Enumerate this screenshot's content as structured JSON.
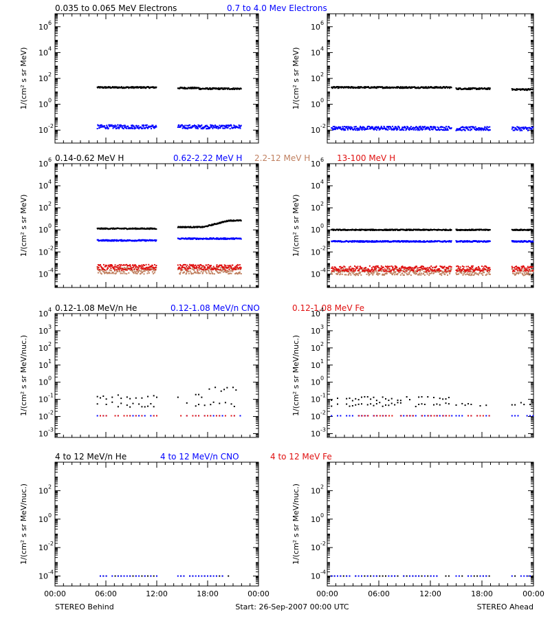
{
  "chart_data": [
    {
      "type": "scatter",
      "panel": "behind-electrons",
      "ylabel": "1/(cm² s sr MeV)",
      "yscale": "log",
      "ylim": [
        0.001,
        10000000
      ],
      "yticks": [
        {
          "exp": -2,
          "label": "10"
        },
        {
          "exp": 0,
          "label": "10"
        },
        {
          "exp": 2,
          "label": "10"
        },
        {
          "exp": 4,
          "label": "10"
        },
        {
          "exp": 6,
          "label": "10"
        }
      ],
      "xlim_hours": [
        0,
        24
      ],
      "series": [
        {
          "name": "0.035 to 0.065 MeV Electrons",
          "color": "#000000",
          "segments": [
            [
              5,
              12,
              20
            ],
            [
              14.5,
              17,
              18
            ],
            [
              17,
              22,
              16
            ]
          ],
          "scatter": 0.06
        },
        {
          "name": "0.7 to 4.0 Mev Electrons",
          "color": "#0000ff",
          "segments": [
            [
              5,
              12,
              0.018
            ],
            [
              14.5,
              22,
              0.018
            ]
          ],
          "scatter": 0.15
        }
      ]
    },
    {
      "type": "scatter",
      "panel": "ahead-electrons",
      "ylabel": "1/(cm² s sr MeV)",
      "yscale": "log",
      "ylim": [
        0.001,
        10000000
      ],
      "yticks": [
        {
          "exp": -2,
          "label": "10"
        },
        {
          "exp": 0,
          "label": "10"
        },
        {
          "exp": 2,
          "label": "10"
        },
        {
          "exp": 4,
          "label": "10"
        },
        {
          "exp": 6,
          "label": "10"
        }
      ],
      "xlim_hours": [
        0,
        24
      ],
      "series": [
        {
          "name": "",
          "color": "#000000",
          "segments": [
            [
              0.5,
              14.5,
              20
            ],
            [
              15,
              19,
              16
            ],
            [
              21.5,
              24,
              14
            ]
          ],
          "scatter": 0.06
        },
        {
          "name": "",
          "color": "#0000ff",
          "segments": [
            [
              0.5,
              14.5,
              0.014
            ],
            [
              15,
              19,
              0.013
            ],
            [
              21.5,
              24,
              0.013
            ]
          ],
          "scatter": 0.15
        }
      ]
    },
    {
      "type": "scatter",
      "panel": "behind-protons",
      "ylabel": "1/(cm² s sr MeV)",
      "yscale": "log",
      "ylim": [
        6e-06,
        1000000
      ],
      "yticks": [
        {
          "exp": -4,
          "label": "10"
        },
        {
          "exp": -2,
          "label": "10"
        },
        {
          "exp": 0,
          "label": "10"
        },
        {
          "exp": 2,
          "label": "10"
        },
        {
          "exp": 4,
          "label": "10"
        },
        {
          "exp": 6,
          "label": "10"
        }
      ],
      "xlim_hours": [
        0,
        24
      ],
      "series": [
        {
          "name": "0.14-0.62 MeV H",
          "color": "#000000",
          "segments": [
            [
              5,
              12,
              1.3
            ],
            [
              14.5,
              17.5,
              1.8
            ],
            [
              17.5,
              22,
              7
            ]
          ],
          "scatter": 0.05
        },
        {
          "name": "0.62-2.22 MeV H",
          "color": "#0000ff",
          "segments": [
            [
              5,
              12,
              0.11
            ],
            [
              14.5,
              22,
              0.16
            ]
          ],
          "scatter": 0.06
        },
        {
          "name": "2.2-12 MeV H",
          "color": "#c08060",
          "segments": [
            [
              5,
              12,
              0.0002
            ],
            [
              14.5,
              22,
              0.0002
            ]
          ],
          "scatter": 0.3
        },
        {
          "name": "13-100 MeV H",
          "color": "#e01010",
          "segments": [
            [
              5,
              12,
              0.0004
            ],
            [
              14.5,
              22,
              0.0004
            ]
          ],
          "scatter": 0.25
        }
      ]
    },
    {
      "type": "scatter",
      "panel": "ahead-protons",
      "ylabel": "1/(cm² s sr MeV)",
      "yscale": "log",
      "ylim": [
        6e-06,
        1000000
      ],
      "yticks": [
        {
          "exp": -4,
          "label": "10"
        },
        {
          "exp": -2,
          "label": "10"
        },
        {
          "exp": 0,
          "label": "10"
        },
        {
          "exp": 2,
          "label": "10"
        },
        {
          "exp": 4,
          "label": "10"
        },
        {
          "exp": 6,
          "label": "10"
        }
      ],
      "xlim_hours": [
        0,
        24
      ],
      "series": [
        {
          "name": "",
          "color": "#000000",
          "segments": [
            [
              0.5,
              14.5,
              1.0
            ],
            [
              15,
              19,
              1.0
            ],
            [
              21.5,
              24,
              1.0
            ]
          ],
          "scatter": 0.05
        },
        {
          "name": "",
          "color": "#0000ff",
          "segments": [
            [
              0.5,
              14.5,
              0.09
            ],
            [
              15,
              19,
              0.09
            ],
            [
              21.5,
              24,
              0.09
            ]
          ],
          "scatter": 0.06
        },
        {
          "name": "",
          "color": "#c08060",
          "segments": [
            [
              0.5,
              14.5,
              0.00015
            ],
            [
              15,
              19,
              0.00015
            ],
            [
              21.5,
              24,
              0.00015
            ]
          ],
          "scatter": 0.3
        },
        {
          "name": "",
          "color": "#e01010",
          "segments": [
            [
              0.5,
              14.5,
              0.0003
            ],
            [
              15,
              19,
              0.0003
            ],
            [
              21.5,
              24,
              0.0003
            ]
          ],
          "scatter": 0.25
        }
      ]
    },
    {
      "type": "scatter",
      "panel": "behind-heavy-low",
      "ylabel": "1/(cm² s sr MeV/nuc.)",
      "yscale": "log",
      "ylim": [
        0.0006,
        10000
      ],
      "yticks": [
        {
          "exp": -3,
          "label": "10"
        },
        {
          "exp": -2,
          "label": "10"
        },
        {
          "exp": -1,
          "label": "10"
        },
        {
          "exp": 0,
          "label": "10"
        },
        {
          "exp": 1,
          "label": "10"
        },
        {
          "exp": 2,
          "label": "10"
        },
        {
          "exp": 3,
          "label": "10"
        },
        {
          "exp": 4,
          "label": "10"
        }
      ],
      "xlim_hours": [
        0,
        24
      ],
      "series": [
        {
          "name": "0.12-1.08 MeV/n He",
          "color": "#000000",
          "segments": [
            [
              5,
              12,
              0.05
            ],
            [
              5,
              12,
              0.13
            ],
            [
              14.5,
              22,
              0.05
            ],
            [
              14.5,
              17.5,
              0.15
            ],
            [
              17.5,
              22,
              0.4
            ]
          ],
          "scatter": 0.15,
          "sparse": true
        },
        {
          "name": "0.12-1.08 MeV/n CNO",
          "color": "#0000ff",
          "segments": [
            [
              5,
              12,
              0.011
            ],
            [
              14.5,
              22,
              0.011
            ]
          ],
          "scatter": 0.0,
          "sparse": true
        },
        {
          "name": "0.12-1.08 MeV Fe",
          "color": "#e01010",
          "segments": [
            [
              5,
              12,
              0.011
            ],
            [
              14.5,
              22,
              0.011
            ]
          ],
          "scatter": 0.0,
          "sparse": true
        }
      ]
    },
    {
      "type": "scatter",
      "panel": "ahead-heavy-low",
      "ylabel": "1/(cm² s sr MeV/nuc.)",
      "yscale": "log",
      "ylim": [
        0.0006,
        10000
      ],
      "yticks": [
        {
          "exp": -3,
          "label": "10"
        },
        {
          "exp": -2,
          "label": "10"
        },
        {
          "exp": -1,
          "label": "10"
        },
        {
          "exp": 0,
          "label": "10"
        },
        {
          "exp": 1,
          "label": "10"
        },
        {
          "exp": 2,
          "label": "10"
        },
        {
          "exp": 3,
          "label": "10"
        },
        {
          "exp": 4,
          "label": "10"
        }
      ],
      "xlim_hours": [
        0,
        24
      ],
      "series": [
        {
          "name": "",
          "color": "#000000",
          "segments": [
            [
              0.5,
              14.5,
              0.05
            ],
            [
              0.5,
              14.5,
              0.11
            ],
            [
              15,
              19,
              0.05
            ],
            [
              21.5,
              24,
              0.06
            ]
          ],
          "scatter": 0.12,
          "sparse": true
        },
        {
          "name": "",
          "color": "#0000ff",
          "segments": [
            [
              0.5,
              14.5,
              0.011
            ],
            [
              15,
              19,
              0.011
            ],
            [
              21.5,
              24,
              0.011
            ]
          ],
          "scatter": 0.0,
          "sparse": true
        },
        {
          "name": "",
          "color": "#e01010",
          "segments": [
            [
              3,
              14.5,
              0.011
            ],
            [
              15,
              19,
              0.011
            ]
          ],
          "scatter": 0.0,
          "sparse": true
        }
      ]
    },
    {
      "type": "scatter",
      "panel": "behind-heavy-high",
      "ylabel": "1/(cm² s sr MeV/nuc.)",
      "yscale": "log",
      "ylim": [
        2e-05,
        10000
      ],
      "yticks": [
        {
          "exp": -4,
          "label": "10"
        },
        {
          "exp": -2,
          "label": "10"
        },
        {
          "exp": 0,
          "label": "10"
        },
        {
          "exp": 2,
          "label": "10"
        }
      ],
      "xlim_hours": [
        0,
        24
      ],
      "series": [
        {
          "name": "4 to 12 MeV/n He",
          "color": "#000000",
          "segments": [
            [
              5,
              12,
              0.0001
            ],
            [
              14.5,
              20.5,
              0.0001
            ]
          ],
          "scatter": 0.0,
          "sparse": true
        },
        {
          "name": "4 to 12 MeV/n CNO",
          "color": "#0000ff",
          "segments": [
            [
              5,
              12,
              0.0001
            ],
            [
              14.5,
              20.5,
              0.0001
            ]
          ],
          "scatter": 0.0,
          "sparse": true
        },
        {
          "name": "4 to 12 MeV Fe",
          "color": "#e01010",
          "segments": [],
          "scatter": 0.0,
          "sparse": true
        }
      ]
    },
    {
      "type": "scatter",
      "panel": "ahead-heavy-high",
      "ylabel": "1/(cm² s sr MeV/nuc.)",
      "yscale": "log",
      "ylim": [
        2e-05,
        10000
      ],
      "yticks": [
        {
          "exp": -4,
          "label": "10"
        },
        {
          "exp": -2,
          "label": "10"
        },
        {
          "exp": 0,
          "label": "10"
        },
        {
          "exp": 2,
          "label": "10"
        }
      ],
      "xlim_hours": [
        0,
        24
      ],
      "series": [
        {
          "name": "",
          "color": "#000000",
          "segments": [
            [
              0.5,
              14.5,
              0.0001
            ],
            [
              15,
              19,
              0.0001
            ],
            [
              21.5,
              24,
              0.0001
            ]
          ],
          "scatter": 0.0,
          "sparse": true
        },
        {
          "name": "",
          "color": "#0000ff",
          "segments": [
            [
              0.5,
              14.5,
              0.0001
            ],
            [
              15,
              19,
              0.0001
            ],
            [
              21.5,
              24,
              0.0001
            ]
          ],
          "scatter": 0.0,
          "sparse": true
        }
      ]
    }
  ],
  "xticks": [
    "00:00",
    "06:00",
    "12:00",
    "18:00",
    "00:00"
  ],
  "footer": {
    "left": "STEREO Behind",
    "center": "Start: 26-Sep-2007 00:00 UTC",
    "right": "STEREO Ahead"
  }
}
